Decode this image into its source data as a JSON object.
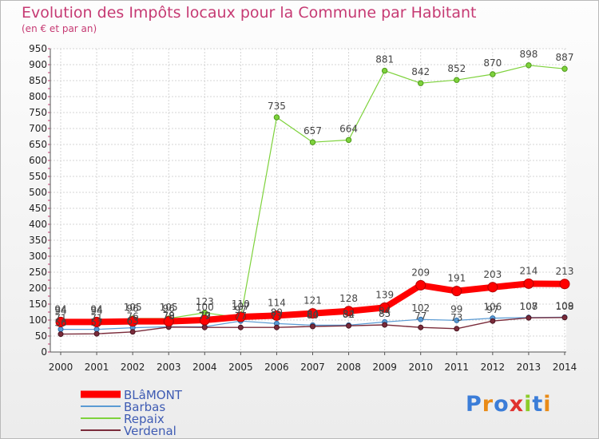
{
  "chart_data": {
    "type": "line",
    "title": "Evolution des Impôts locaux pour la Commune par Habitant",
    "subtitle": "(en € et par an)",
    "x": [
      "2000",
      "2001",
      "2002",
      "2003",
      "2004",
      "2005",
      "2006",
      "2007",
      "2008",
      "2009",
      "2010",
      "2011",
      "2012",
      "2013",
      "2014"
    ],
    "yticks": [
      0,
      50,
      100,
      150,
      200,
      250,
      300,
      350,
      400,
      450,
      500,
      550,
      600,
      650,
      700,
      750,
      800,
      850,
      900,
      950
    ],
    "ylim": [
      0,
      950
    ],
    "grid": true,
    "legend_position": "bottom-left",
    "series": [
      {
        "name": "BLâMONT",
        "color": "#ff0000",
        "values": [
          94,
          94,
          96,
          96,
          100,
          110,
          114,
          121,
          128,
          139,
          209,
          191,
          203,
          214,
          213
        ]
      },
      {
        "name": "Barbas",
        "color": "#5a9bd4",
        "values": [
          71,
          71,
          76,
          79,
          79,
          97,
          89,
          84,
          84,
          94,
          102,
          99,
          106,
          108,
          109
        ]
      },
      {
        "name": "Repaix",
        "color": "#7ed23c",
        "values": [
          94,
          94,
          105,
          105,
          123,
          107,
          735,
          657,
          664,
          881,
          842,
          852,
          870,
          898,
          887
        ]
      },
      {
        "name": "Verdenal",
        "color": "#7a2b3a",
        "values": [
          56,
          57,
          63,
          78,
          77,
          77,
          77,
          80,
          82,
          85,
          77,
          73,
          97,
          107,
          108
        ]
      }
    ]
  },
  "logo": {
    "text": "Proxiti",
    "letters": [
      "P",
      "r",
      "o",
      "x",
      "i",
      "t",
      "i"
    ],
    "colors": [
      "#3b7dd8",
      "#e98a16",
      "#3b7dd8",
      "#e0312e",
      "#8ccc2a",
      "#3b7dd8",
      "#e98a16"
    ]
  }
}
